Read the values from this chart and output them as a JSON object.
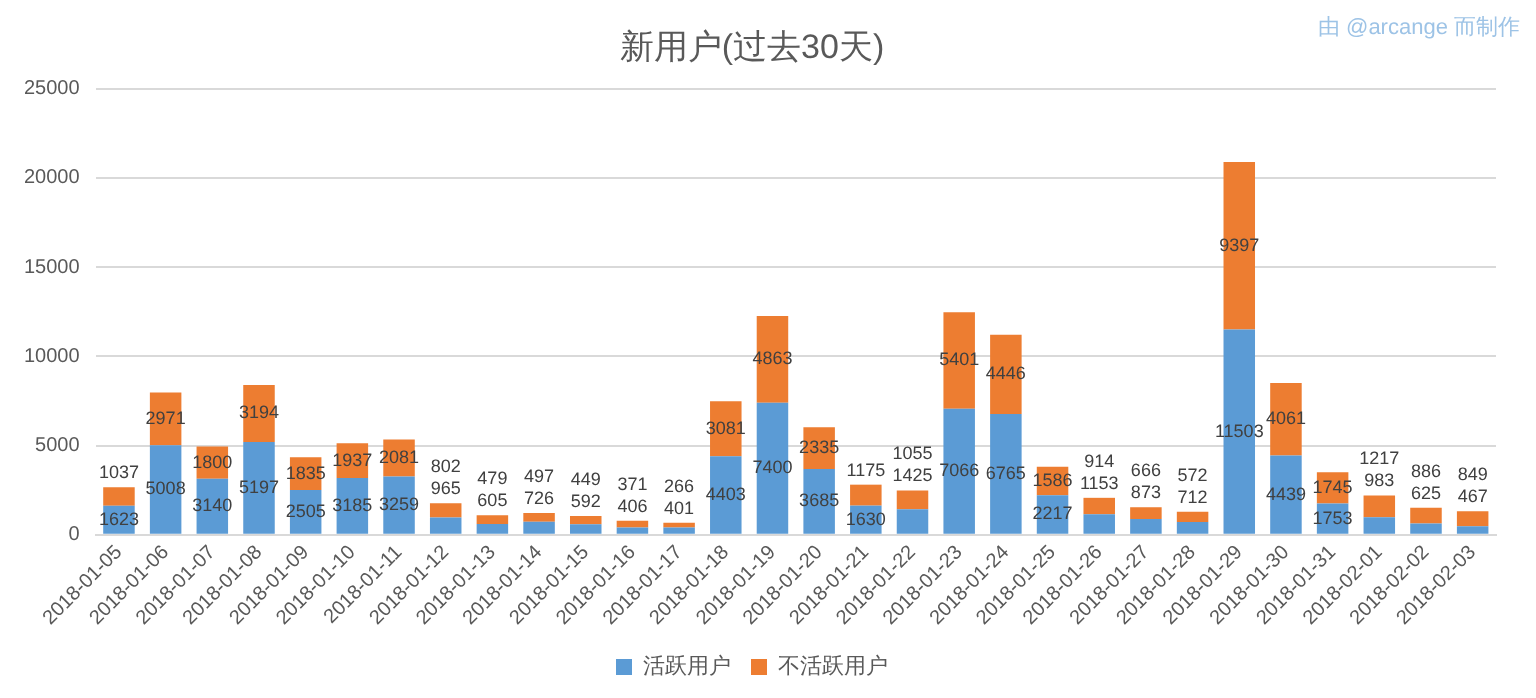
{
  "chart_data": {
    "type": "bar",
    "title": "新用户(过去30天)",
    "annotations": [
      "由 @arcange 而制作"
    ],
    "categories": [
      "2018-01-05",
      "2018-01-06",
      "2018-01-07",
      "2018-01-08",
      "2018-01-09",
      "2018-01-10",
      "2018-01-11",
      "2018-01-12",
      "2018-01-13",
      "2018-01-14",
      "2018-01-15",
      "2018-01-16",
      "2018-01-17",
      "2018-01-18",
      "2018-01-19",
      "2018-01-20",
      "2018-01-21",
      "2018-01-22",
      "2018-01-23",
      "2018-01-24",
      "2018-01-25",
      "2018-01-26",
      "2018-01-27",
      "2018-01-28",
      "2018-01-29",
      "2018-01-30",
      "2018-01-31",
      "2018-02-01",
      "2018-02-02",
      "2018-02-03"
    ],
    "series": [
      {
        "name": "活跃用户",
        "color": "#5b9bd5",
        "values": [
          1623,
          5008,
          3140,
          5197,
          2505,
          3185,
          3259,
          965,
          605,
          726,
          592,
          406,
          401,
          4403,
          7400,
          3685,
          1630,
          1425,
          7066,
          6765,
          2217,
          1153,
          873,
          712,
          11503,
          4439,
          1753,
          983,
          625,
          467
        ]
      },
      {
        "name": "不活跃用户",
        "color": "#ed7d31",
        "values": [
          1037,
          2971,
          1800,
          3194,
          1835,
          1937,
          2081,
          802,
          479,
          497,
          449,
          371,
          266,
          3081,
          4863,
          2335,
          1175,
          1055,
          5401,
          4446,
          1586,
          914,
          666,
          572,
          9397,
          4061,
          1745,
          1217,
          886,
          849
        ]
      }
    ],
    "stacked": true,
    "ylim": [
      0,
      25000
    ],
    "yticks": [
      0,
      5000,
      10000,
      15000,
      20000,
      25000
    ],
    "grid": "y",
    "legend": "bottom",
    "data_labels": true
  }
}
